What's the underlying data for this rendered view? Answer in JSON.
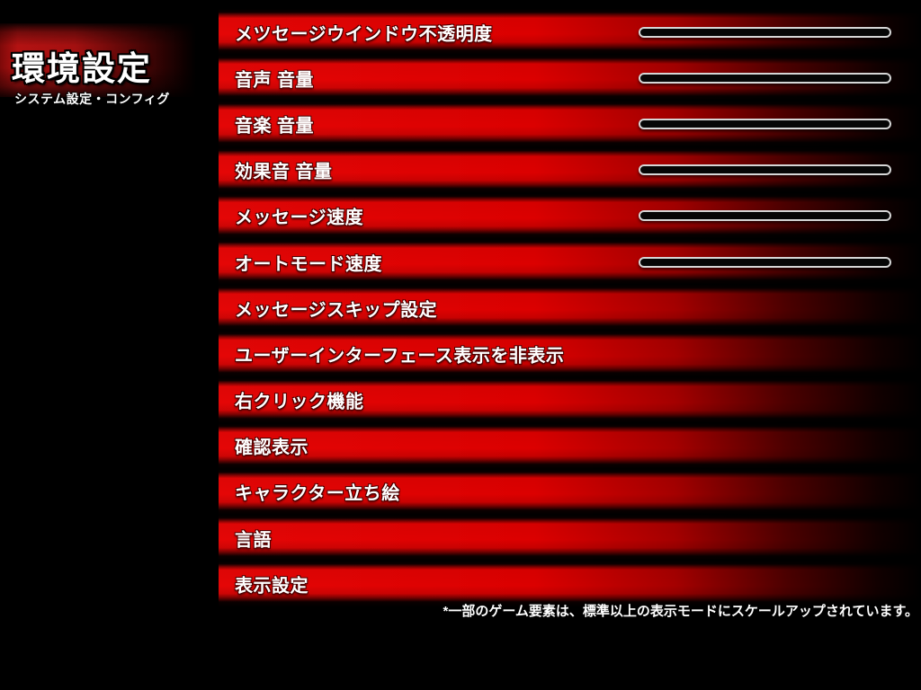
{
  "page": {
    "background_color": "#000000",
    "accent_red": "#e00000",
    "slider_border_color": "#d6d6d6",
    "text_color": "#ffffff"
  },
  "header": {
    "title": "環境設定",
    "subtitle": "システム設定・コンフィグ"
  },
  "settings": {
    "items": [
      {
        "label": "メツセージウインドウ不透明度",
        "has_slider": true
      },
      {
        "label": "音声 音量",
        "has_slider": true
      },
      {
        "label": "音楽 音量",
        "has_slider": true
      },
      {
        "label": "効果音 音量",
        "has_slider": true
      },
      {
        "label": "メッセージ速度",
        "has_slider": true
      },
      {
        "label": "オートモード速度",
        "has_slider": true
      },
      {
        "label": "メッセージスキップ設定",
        "has_slider": false
      },
      {
        "label": "ユーザーインターフェース表示を非表示",
        "has_slider": false
      },
      {
        "label": "右クリック機能",
        "has_slider": false
      },
      {
        "label": "確認表示",
        "has_slider": false
      },
      {
        "label": "キャラクター立ち絵",
        "has_slider": false
      },
      {
        "label": "言語",
        "has_slider": false
      },
      {
        "label": "表示設定",
        "has_slider": false
      }
    ]
  },
  "footnote": {
    "text": "*一部のゲーム要素は、標準以上の表示モードにスケールアップされています。"
  }
}
